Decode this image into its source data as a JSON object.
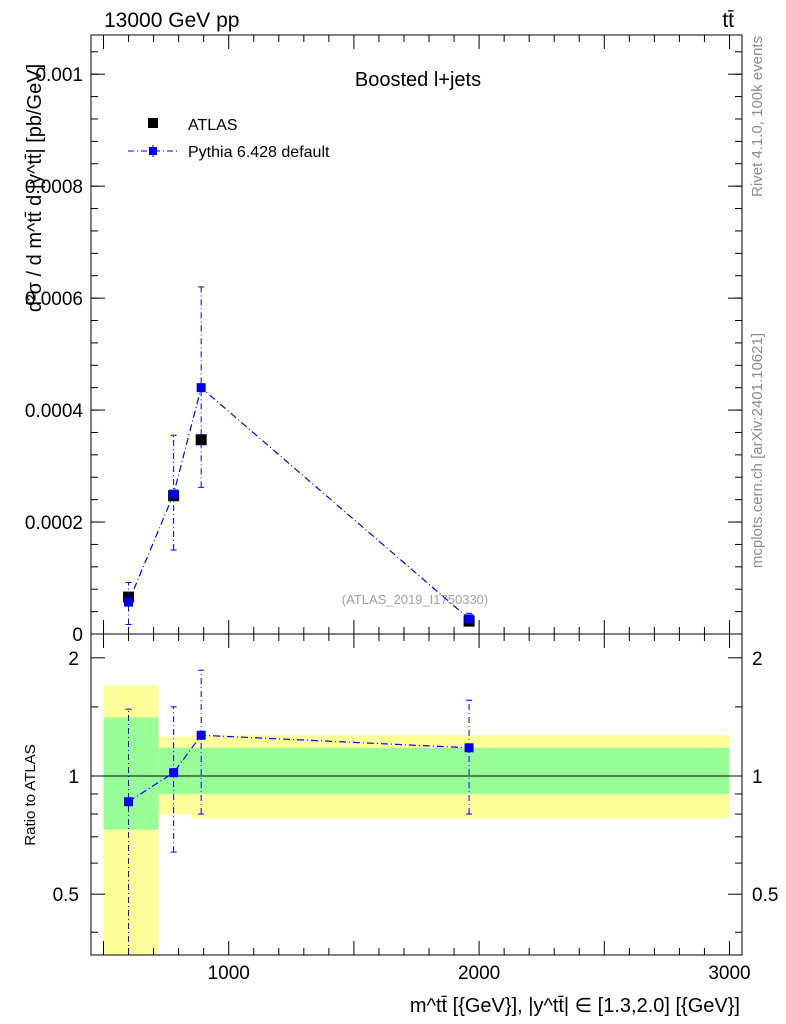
{
  "header": {
    "energy_label": "13000 GeV pp",
    "process_label": "tt̄"
  },
  "side_text": {
    "rivet": "Rivet 4.1.0,  100k events",
    "site": "mcplots.cern.ch [arXiv:2401.10621]"
  },
  "colors": {
    "atlas": "#000000",
    "mc": "#0000ee",
    "band_inner": "#99ff99",
    "band_outer": "#ffff99"
  },
  "chart_data": [
    {
      "type": "scatter",
      "title": "Boosted l+jets",
      "ylabel": "d²σ / d m^tt̄ d |y^tt̄| [pb/GeV]",
      "xlim": [
        450,
        3050
      ],
      "ylim": [
        0,
        0.00107
      ],
      "yticks": [
        "0",
        "0.0002",
        "0.0004",
        "0.0006",
        "0.0008",
        "0.001"
      ],
      "ytick_values": [
        0,
        0.0002,
        0.0004,
        0.0006,
        0.0008,
        0.001
      ],
      "watermark": "(ATLAS_2019_I1750330)",
      "legend": [
        "ATLAS",
        "Pythia 6.428 default"
      ],
      "series": [
        {
          "name": "ATLAS",
          "x": [
            600,
            780,
            890,
            1960
          ],
          "y": [
            6.6e-05,
            0.000247,
            0.000347,
            2.3e-05
          ]
        },
        {
          "name": "Pythia 6.428 default",
          "x": [
            600,
            780,
            890,
            1960
          ],
          "y": [
            5.7e-05,
            0.00025,
            0.00044,
            2.7e-05
          ],
          "yerr_low": [
            1.7e-05,
            0.00015,
            0.000262,
            2e-05
          ],
          "yerr_high": [
            9.2e-05,
            0.000355,
            0.00062,
            3.7e-05
          ]
        }
      ]
    },
    {
      "type": "scatter",
      "ylabel": "Ratio to ATLAS",
      "xlabel": "m^tt̄ [{GeV}], |y^tt̄| ∈ [1.3,2.0] [{GeV}]",
      "xlim": [
        450,
        3050
      ],
      "ylim": [
        0.35,
        2.3
      ],
      "yticks": [
        "0.5",
        "1",
        "2"
      ],
      "ytick_values": [
        0.5,
        1,
        2
      ],
      "xticks": [
        "1000",
        "2000",
        "3000"
      ],
      "xtick_values": [
        1000,
        2000,
        3000
      ],
      "bands": [
        {
          "x0": 500,
          "x1": 720,
          "inner": [
            0.73,
            1.41
          ],
          "outer": [
            0.34,
            1.7
          ]
        },
        {
          "x0": 720,
          "x1": 850,
          "inner": [
            0.9,
            1.18
          ],
          "outer": [
            0.8,
            1.26
          ]
        },
        {
          "x0": 850,
          "x1": 3000,
          "inner": [
            0.9,
            1.18
          ],
          "outer": [
            0.78,
            1.27
          ]
        }
      ],
      "series": [
        {
          "name": "Pythia 6.428 default",
          "x": [
            600,
            780,
            890,
            1960
          ],
          "y": [
            0.86,
            1.02,
            1.27,
            1.18
          ],
          "yerr_low": [
            0.34,
            0.64,
            0.8,
            0.8
          ],
          "yerr_high": [
            1.48,
            1.5,
            1.86,
            1.56
          ]
        }
      ]
    }
  ]
}
